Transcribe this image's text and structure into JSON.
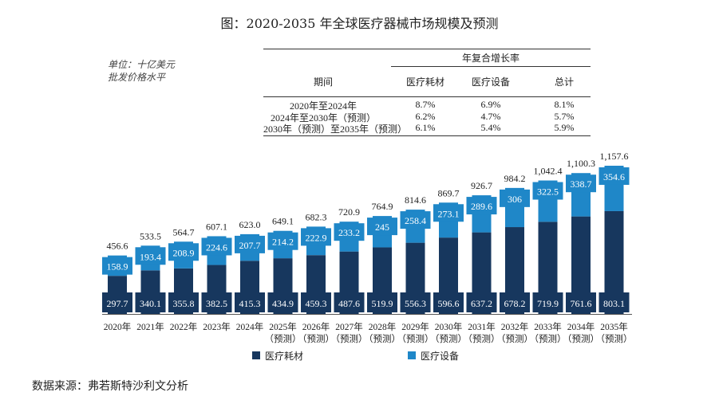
{
  "title": "图：2020-2035 年全球医疗器械市场规模及预测",
  "unit": [
    "单位：十亿美元",
    "批发价格水平"
  ],
  "table": {
    "group_header": "年复合增长率",
    "headers": [
      "期间",
      "医疗耗材",
      "医疗设备",
      "总计"
    ],
    "rows": [
      [
        "2020年至2024年",
        "8.7%",
        "6.9%",
        "8.1%"
      ],
      [
        "2024年至2030年（预测）",
        "6.2%",
        "4.7%",
        "5.7%"
      ],
      [
        "2030年（预测）至2035年（预测）",
        "6.1%",
        "5.4%",
        "5.9%"
      ]
    ]
  },
  "chart_data": {
    "type": "bar",
    "stacked": true,
    "categories": [
      "2020年",
      "2021年",
      "2022年",
      "2023年",
      "2024年",
      "2025年",
      "2026年",
      "2027年",
      "2028年",
      "2029年",
      "2030年",
      "2031年",
      "2032年",
      "2033年",
      "2034年",
      "2035年"
    ],
    "category_notes": [
      "",
      "",
      "",
      "",
      "",
      "（预测）",
      "（预测）",
      "（预测）",
      "（预测）",
      "（预测）",
      "（预测）",
      "（预测）",
      "（预测）",
      "（预测）",
      "（预测）",
      "（预测）"
    ],
    "series": [
      {
        "name": "医疗耗材",
        "color": "#17375e",
        "values": [
          297.7,
          340.1,
          355.8,
          382.5,
          415.3,
          434.9,
          459.3,
          487.6,
          519.9,
          556.3,
          596.6,
          637.2,
          678.2,
          719.9,
          761.6,
          803.1
        ]
      },
      {
        "name": "医疗设备",
        "color": "#1f87c8",
        "values": [
          158.9,
          193.4,
          208.9,
          224.6,
          207.7,
          214.2,
          222.9,
          233.2,
          245.0,
          258.4,
          273.1,
          289.6,
          306.0,
          322.5,
          338.7,
          354.6
        ]
      }
    ],
    "totals": [
      "456.6",
      "533.5",
      "564.7",
      "607.1",
      "623.0",
      "649.1",
      "682.3",
      "720.9",
      "764.9",
      "814.6",
      "869.7",
      "926.7",
      "984.2",
      "1,042.4",
      "1,100.3",
      "1,157.6"
    ],
    "legend": "bottom",
    "grid": false
  },
  "source": "数据来源：弗若斯特沙利文分析"
}
